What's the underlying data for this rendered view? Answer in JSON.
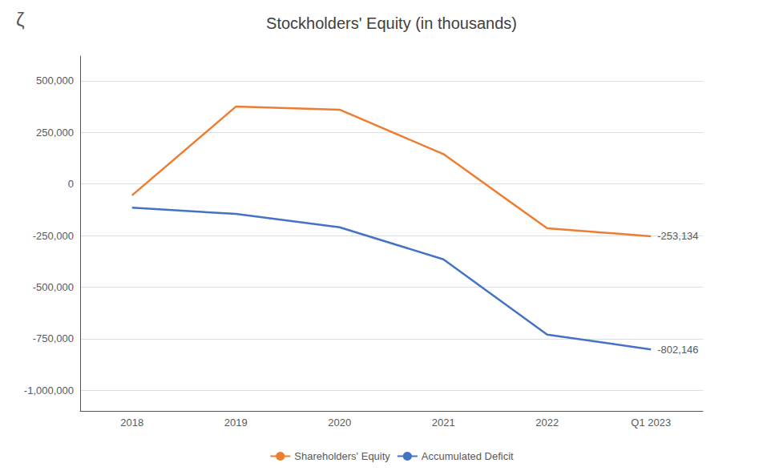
{
  "chart_data": {
    "type": "line",
    "title": "Stockholders' Equity (in thousands)",
    "categories": [
      "2018",
      "2019",
      "2020",
      "2021",
      "2022",
      "Q1 2023"
    ],
    "series": [
      {
        "name": "Shareholders' Equity",
        "color": "#ED7D31",
        "values": [
          -55000,
          375000,
          360000,
          145000,
          -215000,
          -253134
        ]
      },
      {
        "name": "Accumulated Deficit",
        "color": "#4472C4",
        "values": [
          -115000,
          -145000,
          -210000,
          -365000,
          -730000,
          -802146
        ]
      }
    ],
    "ylim": [
      -1100000,
      620000
    ],
    "yticks": [
      {
        "value": -1000000,
        "label": "-1,000,000"
      },
      {
        "value": -750000,
        "label": "-750,000"
      },
      {
        "value": -500000,
        "label": "-500,000"
      },
      {
        "value": -250000,
        "label": "-250,000"
      },
      0,
      {
        "value": 250000,
        "label": "250,000"
      },
      {
        "value": 500000,
        "label": "500,000"
      }
    ],
    "annotations": [
      {
        "text": "-253,134",
        "series": "Shareholders' Equity",
        "category": "Q1 2023"
      },
      {
        "text": "-802,146",
        "series": "Accumulated Deficit",
        "category": "Q1 2023"
      },
      {
        "text": "ζ"
      }
    ],
    "grid": true,
    "legend": "bottom"
  }
}
